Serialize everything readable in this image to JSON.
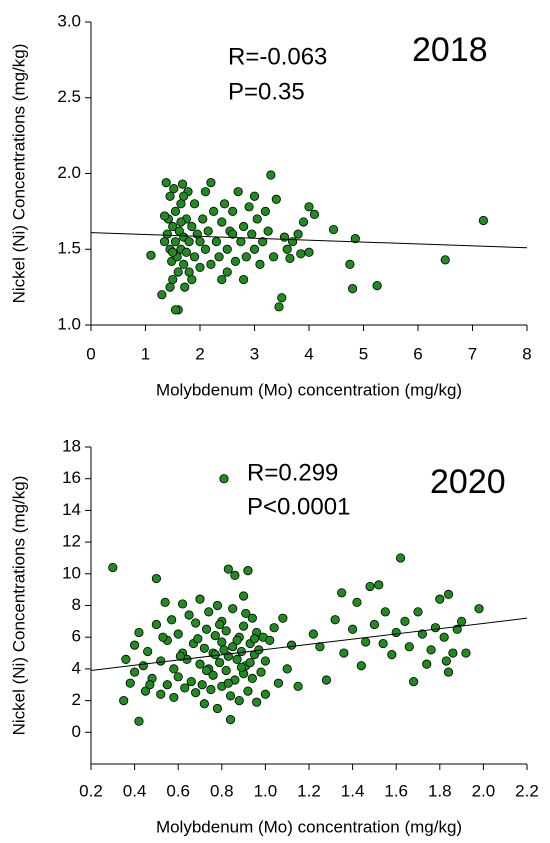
{
  "chart_data": [
    {
      "type": "scatter",
      "annotations": [
        "R=-0.063",
        "P=0.35",
        "2018"
      ],
      "xlabel": "Molybdenum (Mo) concentration (mg/kg)",
      "ylabel": "Nickel (Ni) Concentrations (mg/kg)",
      "color": "#1e8c1e",
      "xlim": [
        0,
        8
      ],
      "xticks": [
        0,
        1,
        2,
        3,
        4,
        5,
        6,
        7,
        8
      ],
      "ylim": [
        1,
        3
      ],
      "yticks": [
        {
          "value": 1,
          "label": "1.0"
        },
        {
          "value": 1.5,
          "label": "1.5"
        },
        {
          "value": 2,
          "label": "2.0"
        },
        {
          "value": 2.5,
          "label": "2.5"
        },
        {
          "value": 3,
          "label": "3.0"
        }
      ],
      "x": [
        1.1,
        1.3,
        1.35,
        1.38,
        1.4,
        1.42,
        1.45,
        1.45,
        1.48,
        1.5,
        1.5,
        1.52,
        1.55,
        1.55,
        1.58,
        1.6,
        1.6,
        1.62,
        1.65,
        1.65,
        1.68,
        1.7,
        1.7,
        1.72,
        1.75,
        1.75,
        1.78,
        1.8,
        1.8,
        1.85,
        1.9,
        1.9,
        1.95,
        2.0,
        2.05,
        2.1,
        2.1,
        2.15,
        2.2,
        2.2,
        2.25,
        2.3,
        2.35,
        2.4,
        2.45,
        2.5,
        2.5,
        2.55,
        2.6,
        2.65,
        2.7,
        2.75,
        2.8,
        2.8,
        2.85,
        2.9,
        2.95,
        3.0,
        3.05,
        3.1,
        3.15,
        3.2,
        3.25,
        3.3,
        3.35,
        3.4,
        3.45,
        3.5,
        3.55,
        3.6,
        3.65,
        3.7,
        3.8,
        3.85,
        3.9,
        4.0,
        4.0,
        4.1,
        4.45,
        4.75,
        4.8,
        4.85,
        5.25,
        6.5,
        7.2,
        1.35,
        1.45,
        1.55,
        1.7,
        1.85,
        2.0,
        2.4,
        2.6,
        3.0,
        1.65,
        1.5
      ],
      "values": [
        1.46,
        1.2,
        1.55,
        1.94,
        1.6,
        1.7,
        1.5,
        1.85,
        1.42,
        1.65,
        1.3,
        1.9,
        1.55,
        1.75,
        1.45,
        1.35,
        1.1,
        1.62,
        1.8,
        1.5,
        1.93,
        1.4,
        1.58,
        1.25,
        1.7,
        1.48,
        1.88,
        1.55,
        1.35,
        1.65,
        1.45,
        1.8,
        1.6,
        1.38,
        1.7,
        1.5,
        1.88,
        1.62,
        1.4,
        1.94,
        1.75,
        1.55,
        1.45,
        1.68,
        1.8,
        1.5,
        1.35,
        1.62,
        1.75,
        1.42,
        1.88,
        1.55,
        1.3,
        1.65,
        1.45,
        1.78,
        1.6,
        1.5,
        1.7,
        1.4,
        1.55,
        1.75,
        1.62,
        1.99,
        1.45,
        1.83,
        1.12,
        1.18,
        1.58,
        1.5,
        1.44,
        1.55,
        1.6,
        1.47,
        1.68,
        1.78,
        1.48,
        1.73,
        1.63,
        1.4,
        1.24,
        1.57,
        1.26,
        1.43,
        1.69,
        1.72,
        1.25,
        1.1,
        1.85,
        1.3,
        1.55,
        1.3,
        1.6,
        1.85,
        1.68,
        1.48
      ],
      "trendline": {
        "x": [
          0,
          8
        ],
        "values": [
          1.61,
          1.51
        ]
      }
    },
    {
      "type": "scatter",
      "annotations": [
        "R=0.299",
        "P<0.0001",
        "2020"
      ],
      "xlabel": "Molybdenum (Mo) concentration (mg/kg)",
      "ylabel": "Nickel (Ni) Concentrations (mg/kg)",
      "color": "#1e8c1e",
      "xlim": [
        0.2,
        2.2
      ],
      "xticks": [
        0.2,
        0.4,
        0.6,
        0.8,
        {
          "value": 1,
          "label": "1.0"
        },
        1.2,
        1.4,
        1.6,
        1.8,
        {
          "value": 2,
          "label": "2.0"
        },
        2.2
      ],
      "ylim": [
        -2,
        18
      ],
      "yticks": [
        0,
        2,
        4,
        6,
        8,
        10,
        12,
        14,
        16,
        18
      ],
      "x": [
        0.3,
        0.35,
        0.36,
        0.38,
        0.4,
        0.4,
        0.42,
        0.42,
        0.44,
        0.45,
        0.46,
        0.48,
        0.5,
        0.5,
        0.52,
        0.52,
        0.54,
        0.55,
        0.55,
        0.57,
        0.58,
        0.58,
        0.6,
        0.6,
        0.62,
        0.62,
        0.63,
        0.64,
        0.65,
        0.66,
        0.67,
        0.68,
        0.68,
        0.7,
        0.7,
        0.71,
        0.72,
        0.72,
        0.73,
        0.74,
        0.74,
        0.75,
        0.76,
        0.76,
        0.77,
        0.78,
        0.78,
        0.79,
        0.8,
        0.8,
        0.8,
        0.81,
        0.82,
        0.82,
        0.83,
        0.83,
        0.84,
        0.84,
        0.85,
        0.85,
        0.86,
        0.86,
        0.87,
        0.88,
        0.88,
        0.89,
        0.9,
        0.9,
        0.9,
        0.91,
        0.92,
        0.92,
        0.93,
        0.94,
        0.94,
        0.95,
        0.96,
        0.96,
        0.97,
        0.98,
        0.99,
        1.0,
        1.0,
        1.02,
        1.04,
        1.06,
        1.08,
        1.1,
        1.12,
        1.15,
        1.22,
        1.25,
        1.28,
        1.32,
        1.35,
        1.36,
        1.4,
        1.42,
        1.44,
        1.46,
        1.48,
        1.5,
        1.52,
        1.54,
        1.55,
        1.58,
        1.6,
        1.62,
        1.64,
        1.66,
        1.68,
        1.7,
        1.72,
        1.74,
        1.76,
        1.78,
        1.8,
        1.82,
        1.83,
        1.84,
        1.84,
        1.86,
        1.88,
        1.9,
        1.92,
        1.98,
        0.47,
        0.53,
        0.61,
        0.69,
        0.73,
        0.77,
        0.79,
        0.81,
        0.83,
        0.87,
        0.89,
        0.91,
        0.93,
        0.95
      ],
      "values": [
        10.4,
        2.0,
        4.6,
        3.1,
        5.5,
        3.8,
        0.7,
        6.3,
        4.2,
        2.6,
        5.1,
        3.4,
        6.8,
        9.7,
        2.4,
        4.5,
        8.2,
        3.0,
        5.8,
        7.1,
        2.2,
        4.0,
        6.2,
        3.5,
        8.1,
        5.0,
        2.8,
        4.6,
        7.4,
        3.2,
        5.6,
        2.5,
        6.9,
        4.3,
        8.4,
        3.0,
        5.3,
        1.8,
        6.5,
        4.0,
        7.6,
        2.7,
        5.0,
        3.6,
        6.1,
        1.5,
        8.0,
        4.4,
        5.7,
        2.9,
        7.0,
        16.0,
        3.9,
        6.4,
        10.3,
        4.8,
        0.8,
        2.3,
        5.4,
        7.8,
        3.3,
        9.9,
        4.6,
        6.0,
        2.0,
        5.1,
        8.6,
        3.7,
        6.7,
        4.2,
        10.2,
        2.6,
        5.6,
        7.2,
        3.4,
        4.9,
        6.3,
        1.9,
        5.2,
        3.8,
        6.0,
        4.5,
        2.4,
        5.8,
        6.6,
        3.1,
        7.2,
        4.0,
        5.5,
        2.9,
        6.2,
        5.4,
        3.3,
        7.1,
        8.8,
        5.0,
        6.5,
        8.2,
        4.2,
        5.7,
        9.2,
        6.8,
        9.3,
        5.6,
        7.6,
        4.9,
        6.3,
        11.0,
        7.0,
        5.4,
        3.2,
        7.6,
        6.2,
        4.3,
        5.2,
        6.6,
        8.4,
        6.0,
        4.5,
        3.8,
        8.7,
        5.0,
        6.5,
        7.0,
        5.0,
        7.8,
        3.0,
        6.0,
        4.8,
        5.9,
        3.9,
        4.9,
        6.8,
        5.2,
        3.1,
        5.8,
        4.1,
        7.5,
        4.4,
        5.9
      ],
      "trendline": {
        "x": [
          0.2,
          2.2
        ],
        "values": [
          3.9,
          7.2
        ]
      }
    }
  ]
}
